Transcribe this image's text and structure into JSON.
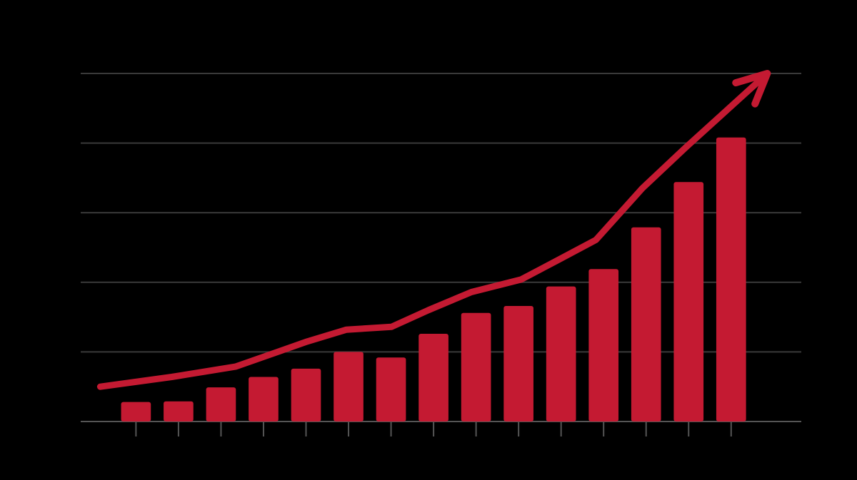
{
  "chart_data": [
    {
      "type": "bar",
      "categories": [
        null,
        null,
        null,
        null,
        null,
        null,
        null,
        null,
        null,
        null,
        null,
        null,
        null,
        null,
        null
      ],
      "values": [
        0.28,
        0.29,
        0.49,
        0.64,
        0.76,
        1.0,
        0.92,
        1.26,
        1.56,
        1.66,
        1.94,
        2.19,
        2.79,
        3.44,
        4.08
      ],
      "color": "#c41a32",
      "xlim": [
        -1.3,
        15.65
      ],
      "ylim": [
        0,
        5
      ],
      "yticks": [
        0,
        1,
        2,
        3,
        4,
        5
      ],
      "grid": true
    },
    {
      "type": "line",
      "x": [
        -0.84,
        0.84,
        2.35,
        4.03,
        4.95,
        6.01,
        6.88,
        7.89,
        9.06,
        9.9,
        10.82,
        11.91,
        12.92,
        14.85
      ],
      "values": [
        0.5,
        0.64,
        0.79,
        1.15,
        1.32,
        1.36,
        1.6,
        1.86,
        2.04,
        2.31,
        2.61,
        3.35,
        3.93,
        5.0
      ],
      "color": "#c41a32",
      "arrow": true,
      "xlim": [
        -1.3,
        15.65
      ],
      "ylim": [
        0,
        5
      ]
    }
  ]
}
